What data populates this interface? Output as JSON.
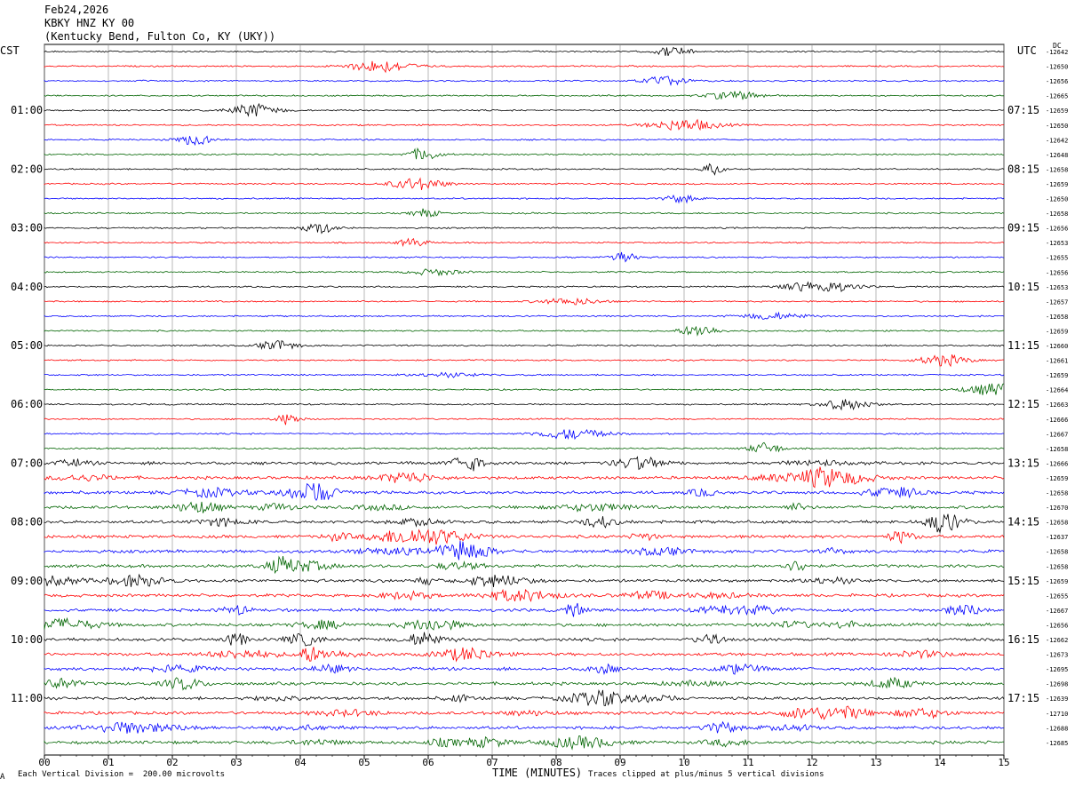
{
  "header": {
    "date": "Feb24,2026",
    "station": "KBKY HNZ KY 00",
    "location": "(Kentucky Bend, Fulton Co, KY (UKY))"
  },
  "left_axis_label": "CST",
  "right_axis_label": "UTC",
  "dc_label": "DC",
  "footer": {
    "scale_note": "Each Vertical Division =  200.00 microvolts",
    "xlabel": "TIME (MINUTES)",
    "clip_note": "Traces clipped at plus/minus 5 vertical divisions",
    "corner_mark": "A"
  },
  "colors": {
    "black": "#000000",
    "red": "#ff0000",
    "blue": "#0000ff",
    "green": "#006400",
    "grid": "#888888"
  },
  "chart_data": {
    "type": "line",
    "x_ticks": [
      "00",
      "01",
      "02",
      "03",
      "04",
      "05",
      "06",
      "07",
      "08",
      "09",
      "10",
      "11",
      "12",
      "13",
      "14",
      "15"
    ],
    "xlim": [
      0,
      15
    ],
    "left_time_labels": [
      "01:00",
      "02:00",
      "03:00",
      "04:00",
      "05:00",
      "06:00",
      "07:00",
      "08:00",
      "09:00",
      "10:00",
      "11:00"
    ],
    "right_time_labels": [
      "07:15",
      "08:15",
      "09:15",
      "10:15",
      "11:15",
      "12:15",
      "13:15",
      "14:15",
      "15:15",
      "16:15",
      "17:15"
    ],
    "trace_colors": [
      "black",
      "red",
      "blue",
      "green"
    ],
    "trace_count": 48,
    "dc_offsets": [
      "-12642",
      "-12650",
      "-12656",
      "-12665",
      "-12659",
      "-12650",
      "-12642",
      "-12648",
      "-12658",
      "-12659",
      "-12650",
      "-12658",
      "-12656",
      "-12653",
      "-12655",
      "-12656",
      "-12653",
      "-12657",
      "-12658",
      "-12659",
      "-12660",
      "-12661",
      "-12659",
      "-12664",
      "-12663",
      "-12666",
      "-12667",
      "-12658",
      "-12666",
      "-12659",
      "-12658",
      "-12670",
      "-12658",
      "-12637",
      "-12658",
      "-12658",
      "-12659",
      "-12655",
      "-12667",
      "-12656",
      "-12662",
      "-12673",
      "-12695",
      "-12698",
      "-12639",
      "-12710",
      "-12688",
      "-12685"
    ]
  }
}
